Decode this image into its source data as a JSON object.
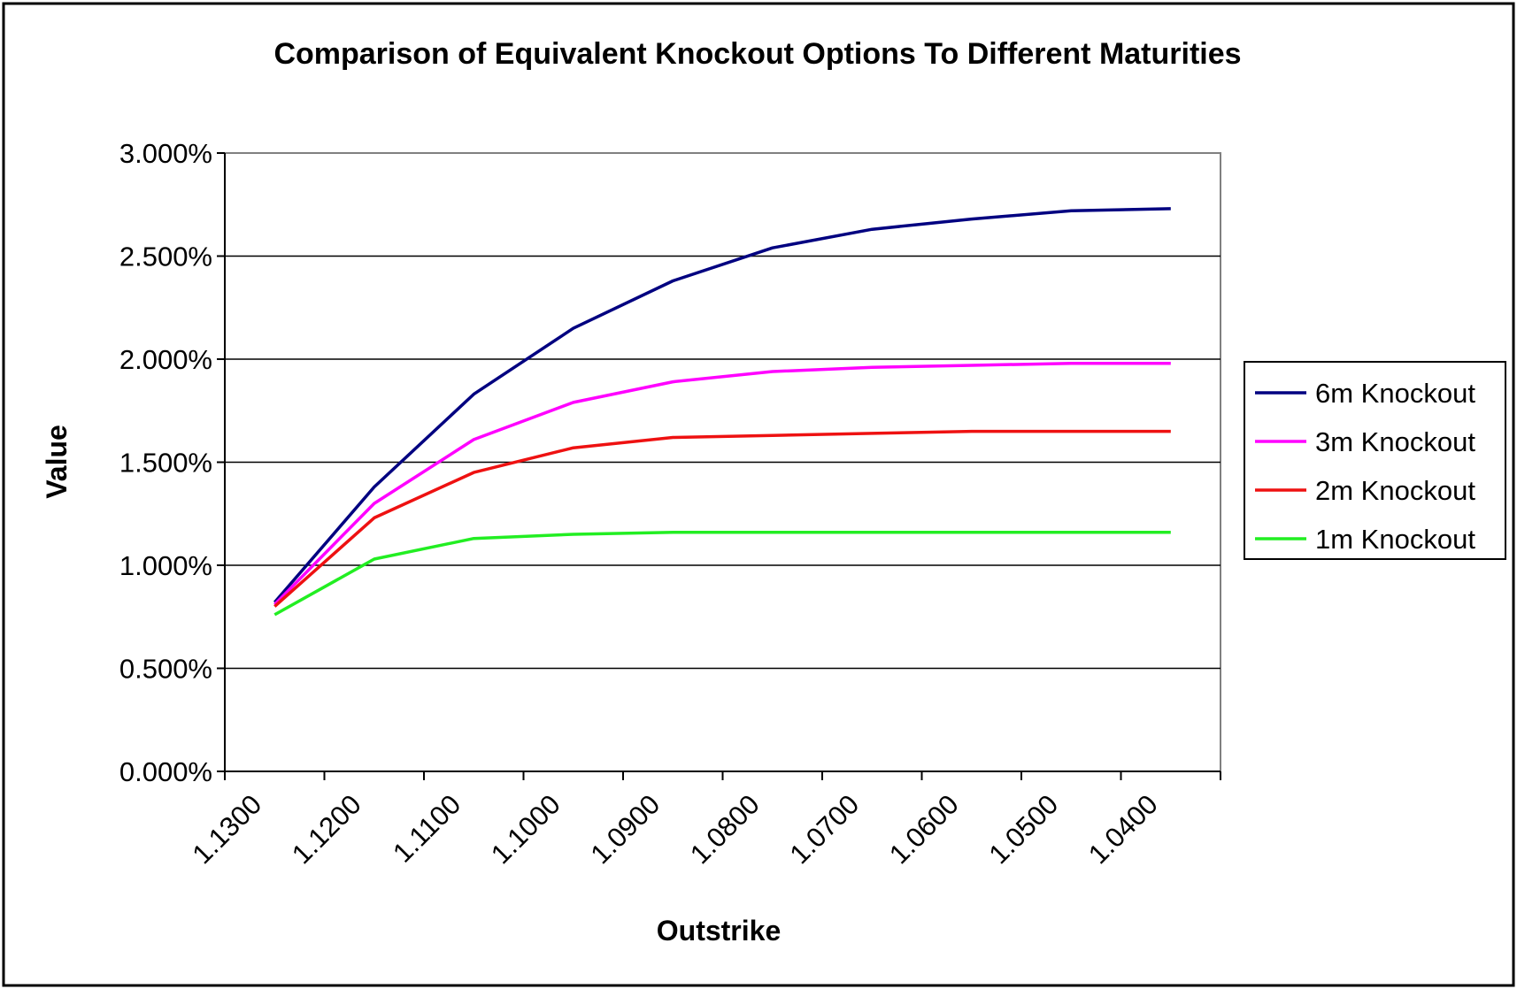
{
  "chart_data": {
    "type": "line",
    "title": "Comparison of Equivalent Knockout Options To Different Maturities",
    "xlabel": "Outstrike",
    "ylabel": "Value",
    "categories": [
      "1.1300",
      "1.1200",
      "1.1100",
      "1.1000",
      "1.0900",
      "1.0800",
      "1.0700",
      "1.0600",
      "1.0500",
      "1.0400"
    ],
    "x_points": [
      1.125,
      1.115,
      1.105,
      1.095,
      1.085,
      1.075,
      1.065,
      1.055,
      1.045,
      1.035
    ],
    "ylim": [
      0,
      3
    ],
    "y_ticks": [
      "0.000%",
      "0.500%",
      "1.000%",
      "1.500%",
      "2.000%",
      "2.500%",
      "3.000%"
    ],
    "y_tick_values": [
      0,
      0.5,
      1,
      1.5,
      2,
      2.5,
      3
    ],
    "grid": "horizontal",
    "legend_position": "right",
    "series": [
      {
        "name": "6m Knockout",
        "color": "#000080",
        "values": [
          0.82,
          1.38,
          1.83,
          2.15,
          2.38,
          2.54,
          2.63,
          2.68,
          2.72,
          2.73
        ]
      },
      {
        "name": "3m Knockout",
        "color": "#ff00ff",
        "values": [
          0.81,
          1.3,
          1.61,
          1.79,
          1.89,
          1.94,
          1.96,
          1.97,
          1.98,
          1.98
        ]
      },
      {
        "name": "2m Knockout",
        "color": "#ee1111",
        "values": [
          0.8,
          1.23,
          1.45,
          1.57,
          1.62,
          1.63,
          1.64,
          1.65,
          1.65,
          1.65
        ]
      },
      {
        "name": "1m Knockout",
        "color": "#22ee22",
        "values": [
          0.76,
          1.03,
          1.13,
          1.15,
          1.16,
          1.16,
          1.16,
          1.16,
          1.16,
          1.16
        ]
      }
    ]
  }
}
